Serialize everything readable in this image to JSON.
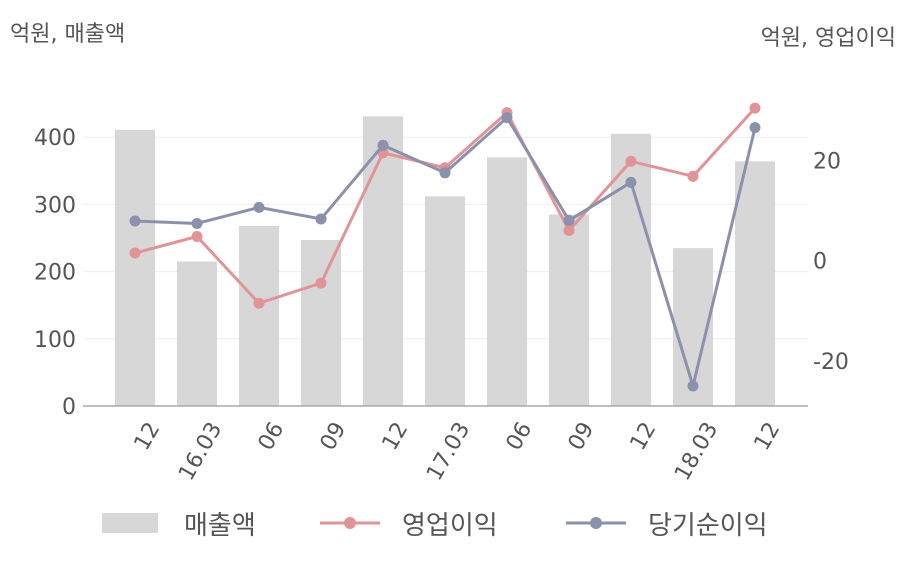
{
  "left_axis_label": "억원, 매출액",
  "right_axis_label": "억원, 영업이익",
  "colors": {
    "revenue": "#d7d7d7",
    "operating_profit": "#e09497",
    "net_profit": "#8b91ab",
    "grid": "#eeeeee",
    "axis": "#aaaaaa",
    "text": "#555555"
  },
  "legend": [
    {
      "name": "매출액",
      "color": "#d7d7d7",
      "style": "bar"
    },
    {
      "name": "영업이익",
      "color": "#e09497",
      "style": "line-marker"
    },
    {
      "name": "당기순이익",
      "color": "#8b91ab",
      "style": "line-marker"
    }
  ],
  "chart_data": {
    "type": "bar+line",
    "categories": [
      "12",
      "16.03",
      "06",
      "09",
      "12",
      "17.03",
      "06",
      "09",
      "12",
      "18.03",
      "12"
    ],
    "y_left": {
      "ticks": [
        0,
        100,
        200,
        300,
        400
      ],
      "ylim": [
        0,
        500
      ]
    },
    "y_right": {
      "ticks": [
        -20,
        0,
        20
      ],
      "ylim": [
        -29,
        38
      ]
    },
    "series": [
      {
        "name": "매출액",
        "type": "bar",
        "axis": "left",
        "values": [
          411,
          215,
          268,
          247,
          431,
          312,
          370,
          285,
          405,
          235,
          364
        ]
      },
      {
        "name": "영업이익",
        "type": "line",
        "axis": "right",
        "values": [
          1.5,
          4.8,
          -8.5,
          -4.5,
          21.5,
          18.5,
          29.5,
          6,
          19.8,
          16.8,
          30.4
        ]
      },
      {
        "name": "당기순이익",
        "type": "line",
        "axis": "right",
        "values": [
          7.9,
          7.4,
          10.6,
          8.3,
          23,
          17.5,
          28.5,
          8,
          15.6,
          -25,
          26.5
        ]
      }
    ],
    "grid": true,
    "legend_position": "bottom"
  }
}
